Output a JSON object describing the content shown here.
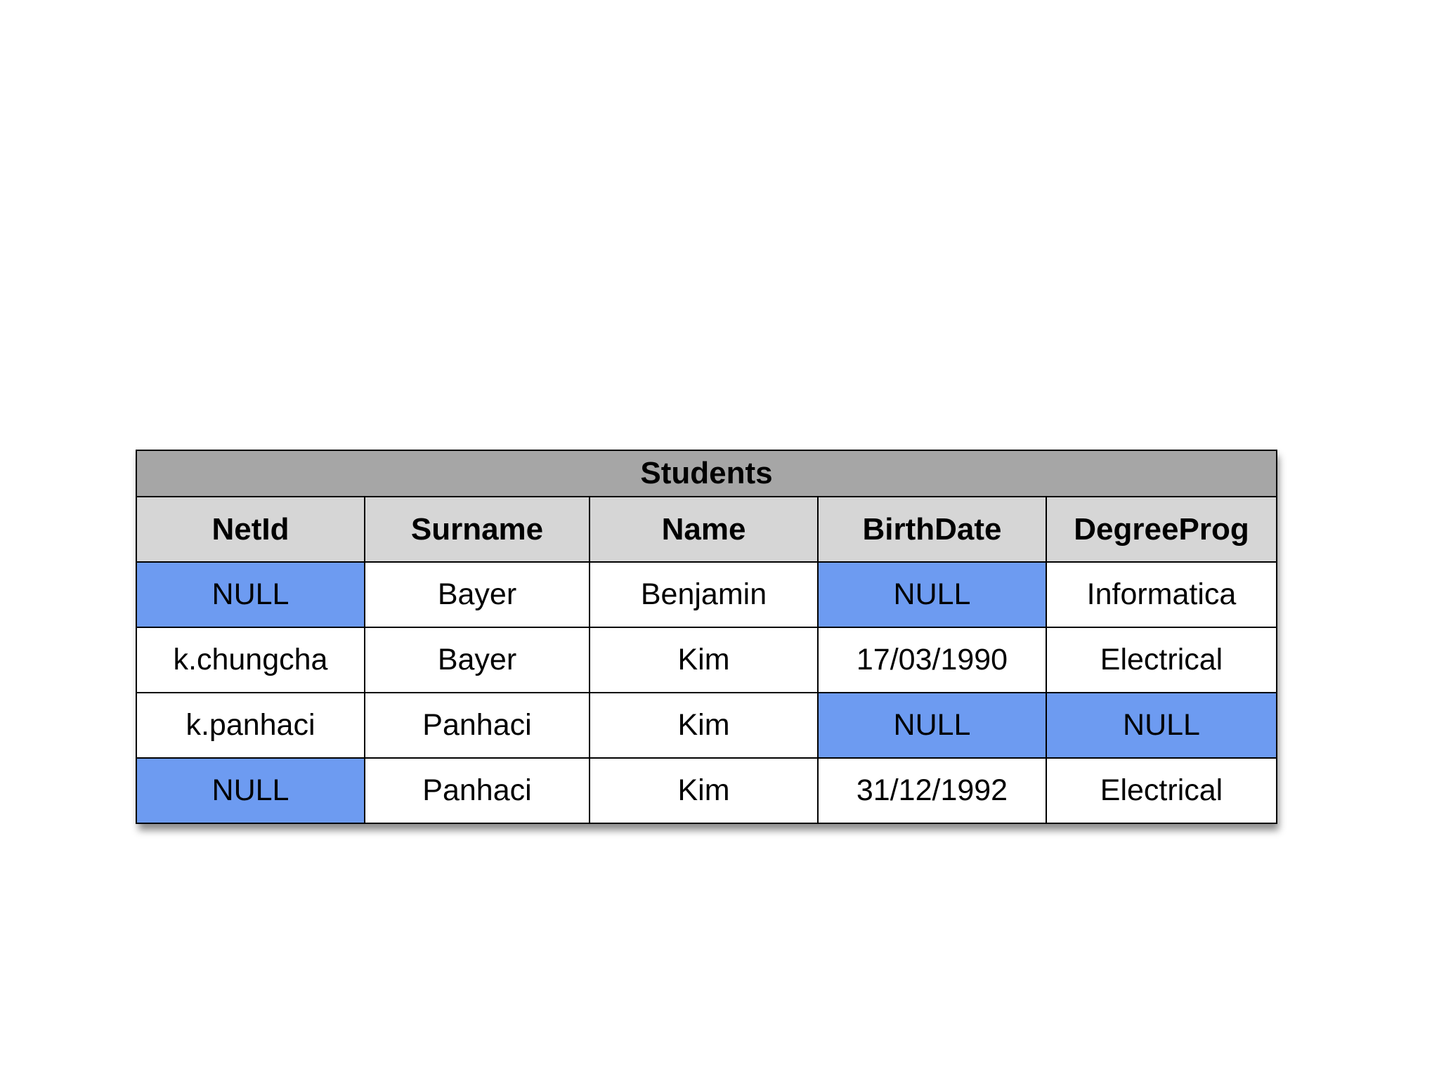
{
  "table": {
    "title": "Students",
    "columns": [
      "NetId",
      "Surname",
      "Name",
      "BirthDate",
      "DegreeProg"
    ],
    "rows": [
      [
        "NULL",
        "Bayer",
        "Benjamin",
        "NULL",
        "Informatica"
      ],
      [
        "k.chungcha",
        "Bayer",
        "Kim",
        "17/03/1990",
        "Electrical"
      ],
      [
        "k.panhaci",
        "Panhaci",
        "Kim",
        "NULL",
        "NULL"
      ],
      [
        "NULL",
        "Panhaci",
        "Kim",
        "31/12/1992",
        "Electrical"
      ]
    ],
    "null_highlight_color": "#6d9bf1",
    "title_bg_color": "#a6a6a6",
    "header_bg_color": "#d6d6d6"
  }
}
